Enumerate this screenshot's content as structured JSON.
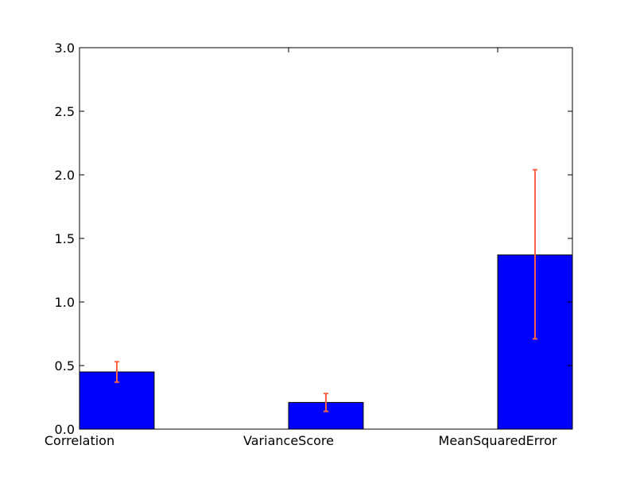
{
  "chart_data": {
    "type": "bar",
    "categories": [
      "Correlation",
      "VarianceScore",
      "MeanSquaredError"
    ],
    "values": [
      0.45,
      0.21,
      1.37
    ],
    "errors": [
      {
        "low": 0.37,
        "high": 0.53
      },
      {
        "low": 0.14,
        "high": 0.28
      },
      {
        "low": 0.71,
        "high": 2.04
      }
    ],
    "x_positions": [
      0,
      1.4,
      2.8
    ],
    "bar_width": 0.5,
    "xlim": [
      0,
      3.3
    ],
    "ylim": [
      0,
      3.0
    ],
    "yticks": [
      0.0,
      0.5,
      1.0,
      1.5,
      2.0,
      2.5,
      3.0
    ],
    "ytick_labels": [
      "0.0",
      "0.5",
      "1.0",
      "1.5",
      "2.0",
      "2.5",
      "3.0"
    ],
    "grid": false,
    "colors": {
      "bar": "#0000ff",
      "error": "#ff6347",
      "axis": "#000000"
    }
  }
}
